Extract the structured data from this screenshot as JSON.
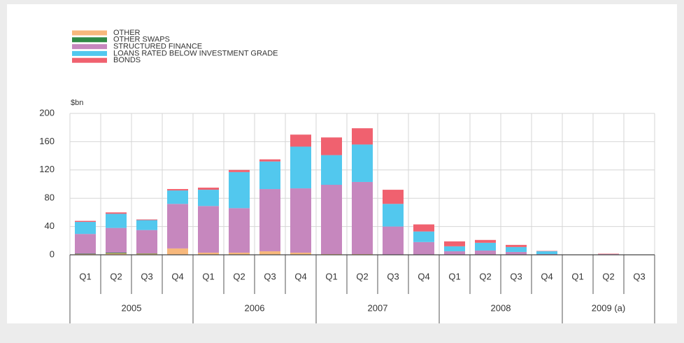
{
  "chart_data": {
    "type": "stacked_bar",
    "unit_label": "$bn",
    "groups": [
      {
        "name": "2005",
        "categories": [
          "Q1",
          "Q2",
          "Q3",
          "Q4"
        ]
      },
      {
        "name": "2006",
        "categories": [
          "Q1",
          "Q2",
          "Q3",
          "Q4"
        ]
      },
      {
        "name": "2007",
        "categories": [
          "Q1",
          "Q2",
          "Q3",
          "Q4"
        ]
      },
      {
        "name": "2008",
        "categories": [
          "Q1",
          "Q2",
          "Q3",
          "Q4"
        ]
      },
      {
        "name": "2009 (a)",
        "categories": [
          "Q1",
          "Q2",
          "Q3"
        ]
      }
    ],
    "series": [
      {
        "name": "OTHER",
        "color": "#f7b87c",
        "values": [
          1,
          2,
          1.5,
          9,
          3,
          3,
          5,
          3,
          1,
          1,
          0,
          0,
          0,
          0,
          0,
          0,
          0,
          0,
          0
        ]
      },
      {
        "name": "OTHER SWAPS",
        "color": "#2f8a45",
        "values": [
          0.5,
          1,
          0.5,
          0,
          0,
          0,
          0,
          0,
          0,
          0,
          0,
          0,
          0,
          0,
          0,
          0,
          0,
          0,
          0
        ]
      },
      {
        "name": "STRUCTURED FINANCE",
        "color": "#c687be",
        "values": [
          28,
          35,
          33,
          63,
          66,
          63,
          88,
          91,
          98,
          102,
          40,
          18,
          5,
          6,
          4,
          1,
          0,
          1,
          0.5
        ]
      },
      {
        "name": "LOANS RATED BELOW INVESTMENT GRADE",
        "color": "#52c8ee",
        "values": [
          17,
          20,
          14,
          19,
          23,
          51,
          39,
          59,
          42,
          53,
          32,
          15,
          7,
          11,
          7,
          4,
          0,
          0,
          0
        ]
      },
      {
        "name": "BONDS",
        "color": "#f0616f",
        "values": [
          1.5,
          2,
          1,
          2,
          3,
          3,
          3,
          17,
          25,
          23,
          20,
          10,
          7,
          4,
          3,
          0.5,
          0,
          0.5,
          0
        ]
      }
    ],
    "ylim": [
      0,
      200
    ],
    "yticks": [
      0,
      40,
      80,
      120,
      160,
      200
    ],
    "grid": true
  }
}
